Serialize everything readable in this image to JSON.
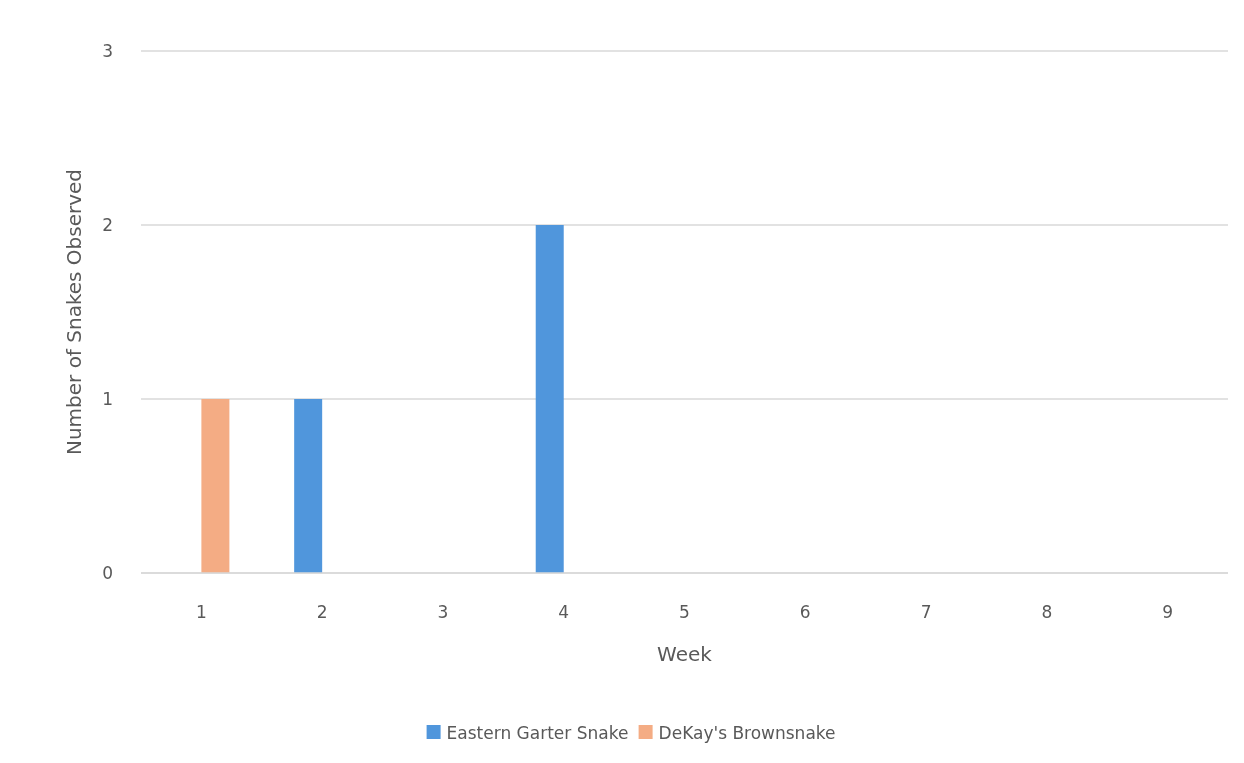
{
  "chart_data": {
    "type": "bar",
    "xlabel": "Week",
    "ylabel": "Number of Snakes Observed",
    "categories": [
      "1",
      "2",
      "3",
      "4",
      "5",
      "6",
      "7",
      "8",
      "9"
    ],
    "series": [
      {
        "name": "Eastern Garter Snake",
        "color": "#5096dc",
        "values": [
          0,
          1,
          0,
          2,
          0,
          0,
          0,
          0,
          0
        ]
      },
      {
        "name": "DeKay's Brownsnake",
        "color": "#f4ac84",
        "values": [
          1,
          0,
          0,
          0,
          0,
          0,
          0,
          0,
          0
        ]
      }
    ],
    "ylim": [
      0,
      3
    ],
    "yticks": [
      0,
      1,
      2,
      3
    ],
    "grid": "y",
    "legend": "bottom"
  }
}
